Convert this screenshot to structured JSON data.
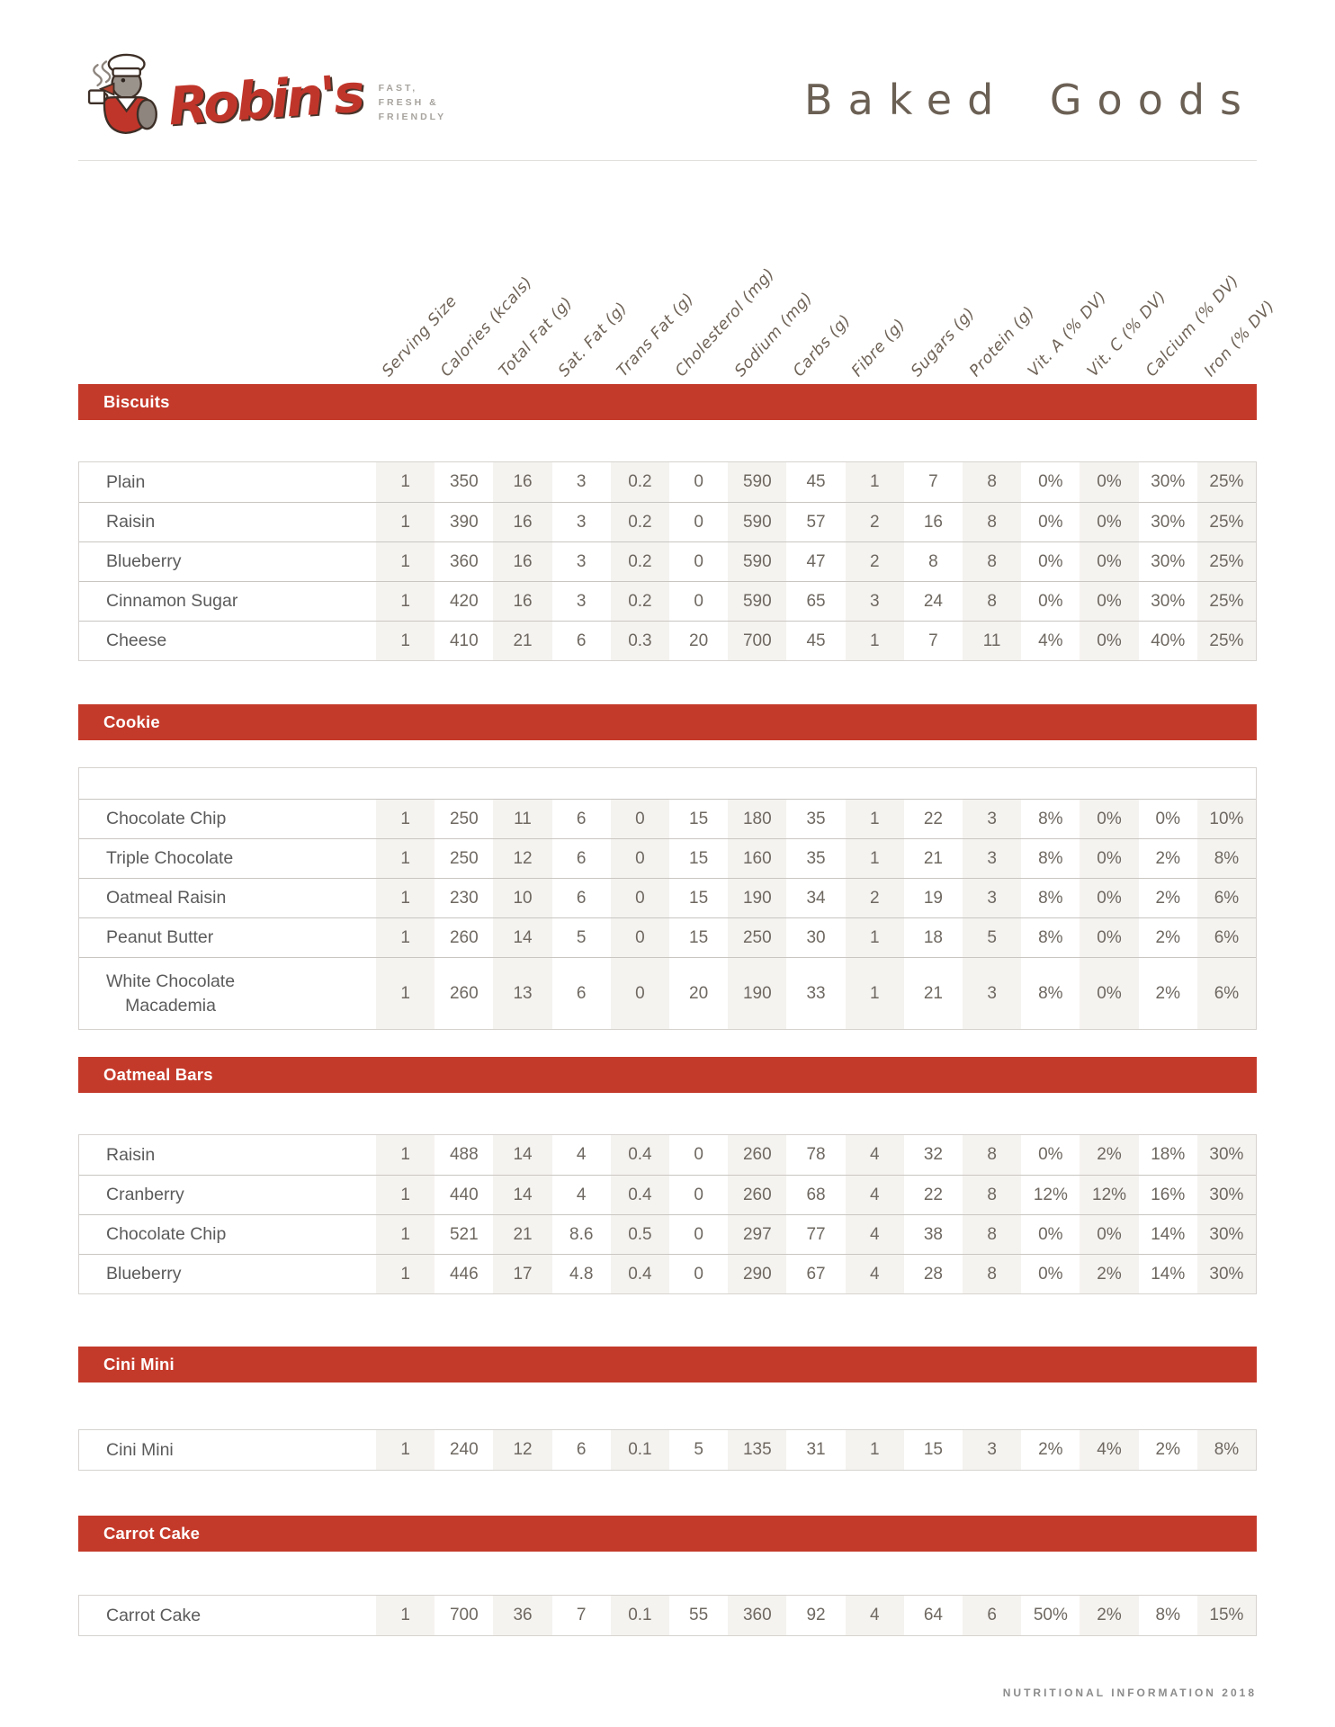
{
  "brand": {
    "name": "Robin's",
    "tagline_lines": [
      "FAST,",
      "FRESH &",
      "FRIENDLY"
    ]
  },
  "page_title": "Baked Goods",
  "footer": "NUTRITIONAL INFORMATION 2018",
  "colors": {
    "accent_red": "#c43a2a",
    "logo_red": "#c0352a",
    "title_brown": "#6b6054",
    "header_text": "#6f6357",
    "cell_text": "#6e6861",
    "label_text": "#5b5b5b",
    "shaded_column": "#f5f3f0"
  },
  "columns": [
    "Serving Size",
    "Calories (kcals)",
    "Total Fat (g)",
    "Sat. Fat (g)",
    "Trans Fat (g)",
    "Cholesterol (mg)",
    "Sodium (mg)",
    "Carbs (g)",
    "Fibre (g)",
    "Sugars (g)",
    "Protein (g)",
    "Vit. A (% DV)",
    "Vit. C (% DV)",
    "Calcium (% DV)",
    "Iron (% DV)"
  ],
  "sections": [
    {
      "title": "Biscuits",
      "empty_leading_row": false,
      "rows": [
        {
          "label": "Plain",
          "values": [
            "1",
            "350",
            "16",
            "3",
            "0.2",
            "0",
            "590",
            "45",
            "1",
            "7",
            "8",
            "0%",
            "0%",
            "30%",
            "25%"
          ]
        },
        {
          "label": "Raisin",
          "values": [
            "1",
            "390",
            "16",
            "3",
            "0.2",
            "0",
            "590",
            "57",
            "2",
            "16",
            "8",
            "0%",
            "0%",
            "30%",
            "25%"
          ]
        },
        {
          "label": "Blueberry",
          "values": [
            "1",
            "360",
            "16",
            "3",
            "0.2",
            "0",
            "590",
            "47",
            "2",
            "8",
            "8",
            "0%",
            "0%",
            "30%",
            "25%"
          ]
        },
        {
          "label": "Cinnamon Sugar",
          "values": [
            "1",
            "420",
            "16",
            "3",
            "0.2",
            "0",
            "590",
            "65",
            "3",
            "24",
            "8",
            "0%",
            "0%",
            "30%",
            "25%"
          ]
        },
        {
          "label": "Cheese",
          "values": [
            "1",
            "410",
            "21",
            "6",
            "0.3",
            "20",
            "700",
            "45",
            "1",
            "7",
            "11",
            "4%",
            "0%",
            "40%",
            "25%"
          ]
        }
      ]
    },
    {
      "title": "Cookie",
      "empty_leading_row": true,
      "rows": [
        {
          "label": "Chocolate Chip",
          "values": [
            "1",
            "250",
            "11",
            "6",
            "0",
            "15",
            "180",
            "35",
            "1",
            "22",
            "3",
            "8%",
            "0%",
            "0%",
            "10%"
          ]
        },
        {
          "label": "Triple Chocolate",
          "values": [
            "1",
            "250",
            "12",
            "6",
            "0",
            "15",
            "160",
            "35",
            "1",
            "21",
            "3",
            "8%",
            "0%",
            "2%",
            "8%"
          ]
        },
        {
          "label": "Oatmeal Raisin",
          "values": [
            "1",
            "230",
            "10",
            "6",
            "0",
            "15",
            "190",
            "34",
            "2",
            "19",
            "3",
            "8%",
            "0%",
            "2%",
            "6%"
          ]
        },
        {
          "label": "Peanut Butter",
          "values": [
            "1",
            "260",
            "14",
            "5",
            "0",
            "15",
            "250",
            "30",
            "1",
            "18",
            "5",
            "8%",
            "0%",
            "2%",
            "6%"
          ]
        },
        {
          "label_lines": [
            "White Chocolate",
            "Macademia"
          ],
          "values": [
            "1",
            "260",
            "13",
            "6",
            "0",
            "20",
            "190",
            "33",
            "1",
            "21",
            "3",
            "8%",
            "0%",
            "2%",
            "6%"
          ]
        }
      ]
    },
    {
      "title": "Oatmeal Bars",
      "empty_leading_row": false,
      "rows": [
        {
          "label": "Raisin",
          "values": [
            "1",
            "488",
            "14",
            "4",
            "0.4",
            "0",
            "260",
            "78",
            "4",
            "32",
            "8",
            "0%",
            "2%",
            "18%",
            "30%"
          ]
        },
        {
          "label": "Cranberry",
          "values": [
            "1",
            "440",
            "14",
            "4",
            "0.4",
            "0",
            "260",
            "68",
            "4",
            "22",
            "8",
            "12%",
            "12%",
            "16%",
            "30%"
          ]
        },
        {
          "label": "Chocolate Chip",
          "values": [
            "1",
            "521",
            "21",
            "8.6",
            "0.5",
            "0",
            "297",
            "77",
            "4",
            "38",
            "8",
            "0%",
            "0%",
            "14%",
            "30%"
          ]
        },
        {
          "label": "Blueberry",
          "values": [
            "1",
            "446",
            "17",
            "4.8",
            "0.4",
            "0",
            "290",
            "67",
            "4",
            "28",
            "8",
            "0%",
            "2%",
            "14%",
            "30%"
          ]
        }
      ]
    },
    {
      "title": "Cini Mini",
      "empty_leading_row": false,
      "rows": [
        {
          "label": "Cini Mini",
          "values": [
            "1",
            "240",
            "12",
            "6",
            "0.1",
            "5",
            "135",
            "31",
            "1",
            "15",
            "3",
            "2%",
            "4%",
            "2%",
            "8%"
          ]
        }
      ]
    },
    {
      "title": "Carrot Cake",
      "empty_leading_row": false,
      "rows": [
        {
          "label": "Carrot Cake",
          "values": [
            "1",
            "700",
            "36",
            "7",
            "0.1",
            "55",
            "360",
            "92",
            "4",
            "64",
            "6",
            "50%",
            "2%",
            "8%",
            "15%"
          ]
        }
      ]
    }
  ]
}
